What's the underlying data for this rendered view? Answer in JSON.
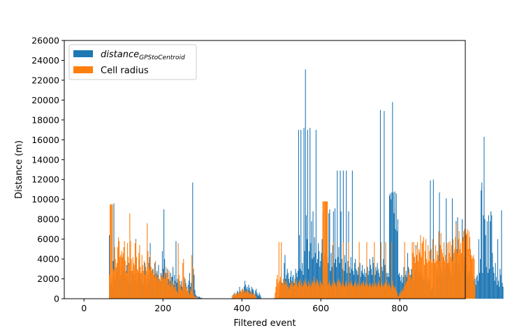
{
  "chart_data": {
    "type": "bar",
    "xlabel": "Filtered event",
    "ylabel": "Distance (m)",
    "xlim": [
      -50,
      966
    ],
    "ylim": [
      0,
      26000
    ],
    "x_ticks": [
      0,
      200,
      400,
      600,
      800
    ],
    "y_ticks": [
      0,
      2000,
      4000,
      6000,
      8000,
      10000,
      12000,
      14000,
      16000,
      18000,
      20000,
      22000,
      24000,
      26000
    ],
    "legend_position": "top-left",
    "grid": false,
    "series": [
      {
        "name": "distance",
        "name_subscript": "GPStoCentroid",
        "color": "#1f77b4",
        "values": [
          0,
          0,
          0,
          0,
          0,
          0,
          0,
          0,
          0,
          0,
          0,
          0,
          0,
          0,
          0,
          0,
          0,
          0,
          0,
          0,
          0,
          0,
          0,
          0,
          0,
          0,
          0,
          0,
          0,
          0,
          0,
          0,
          0,
          6400,
          1600,
          1400,
          2000,
          1200,
          3800,
          9600,
          2400,
          1800,
          3000,
          2600,
          3200,
          2400,
          4000,
          1800,
          2400,
          3000,
          2600,
          4200,
          2800,
          4000,
          2600,
          2000,
          3400,
          2200,
          1600,
          3600,
          2800,
          1400,
          2200,
          1800,
          3200,
          2600,
          2400,
          1800,
          6000,
          2000,
          1600,
          2600,
          4000,
          2400,
          1800,
          2000,
          1600,
          2800,
          1400,
          2200,
          3600,
          1800,
          1400,
          2000,
          2400,
          1600,
          4200,
          5600,
          3200,
          2600,
          3000,
          2800,
          1800,
          3600,
          2600,
          2200,
          2800,
          2400,
          3400,
          2000,
          1800,
          2600,
          2400,
          4800,
          3000,
          9000,
          4000,
          2600,
          2200,
          1600,
          3000,
          2000,
          2400,
          1800,
          2600,
          1600,
          2200,
          3200,
          1400,
          2400,
          1800,
          5800,
          1600,
          2000,
          1200,
          1600,
          1400,
          1000,
          1800,
          1200,
          1600,
          900,
          1400,
          2000,
          1600,
          1200,
          800,
          1400,
          1800,
          2600,
          1200,
          1600,
          600,
          11700,
          3000,
          2400,
          900,
          400,
          300,
          200,
          200,
          200,
          200,
          100,
          100,
          100,
          0,
          0,
          0,
          0,
          0,
          0,
          0,
          0,
          0,
          0,
          0,
          0,
          0,
          0,
          0,
          0,
          0,
          0,
          0,
          0,
          0,
          0,
          0,
          0,
          0,
          0,
          0,
          0,
          0,
          0,
          0,
          0,
          0,
          0,
          0,
          0,
          0,
          0,
          0,
          0,
          200,
          400,
          600,
          300,
          500,
          400,
          800,
          600,
          400,
          1200,
          800,
          600,
          900,
          1000,
          700,
          1200,
          1800,
          1400,
          1000,
          1200,
          800,
          1400,
          1100,
          800,
          600,
          1200,
          1000,
          900,
          600,
          400,
          800,
          1000,
          600,
          400,
          300,
          600,
          400,
          200,
          0,
          0,
          0,
          0,
          0,
          0,
          0,
          0,
          0,
          0,
          0,
          0,
          0,
          0,
          0,
          0,
          0,
          0,
          0,
          0,
          0,
          0,
          0,
          200,
          1200,
          2000,
          2800,
          1600,
          1400,
          2000,
          3600,
          4400,
          2000,
          2400,
          3000,
          2600,
          2000,
          1600,
          2200,
          2800,
          1800,
          2200,
          2400,
          1600,
          2000,
          3000,
          2600,
          2200,
          2800,
          17000,
          6400,
          3000,
          17000,
          2800,
          3600,
          2400,
          17200,
          4800,
          23100,
          8400,
          6000,
          17000,
          3000,
          4800,
          17200,
          5600,
          7800,
          4000,
          8800,
          4200,
          6200,
          4600,
          17000,
          3600,
          4000,
          5600,
          4800,
          3200,
          3800,
          4600,
          6000,
          8800,
          4000,
          3200,
          4400,
          5600,
          3000,
          4200,
          3600,
          8600,
          9000,
          2800,
          4600,
          3200,
          5400,
          8800,
          3600,
          9100,
          4000,
          3200,
          12900,
          4200,
          5200,
          3600,
          12900,
          8800,
          4000,
          3000,
          12900,
          2800,
          4400,
          3600,
          12900,
          2600,
          3800,
          8800,
          3200,
          2600,
          4200,
          3000,
          12900,
          2800,
          2400,
          3600,
          4000,
          3000,
          2800,
          2400,
          3200,
          2600,
          3600,
          2200,
          2800,
          3400,
          2600,
          2400,
          3000,
          2200,
          2600,
          2000,
          3200,
          2400,
          2800,
          4000,
          3400,
          3000,
          2400,
          4200,
          3600,
          3000,
          2400,
          3200,
          2800,
          3600,
          3000,
          2600,
          2200,
          19000,
          3800,
          3200,
          2800,
          4000,
          18900,
          3400,
          3000,
          2600,
          2200,
          2600,
          2200,
          10400,
          10600,
          10000,
          10700,
          19800,
          10700,
          8600,
          10800,
          7000,
          10600,
          6800,
          8000,
          2400,
          2600,
          2200,
          1800,
          2400,
          1600,
          2200,
          3200,
          2000,
          2400,
          2800,
          2200,
          4600,
          3200,
          2600,
          2000,
          2400,
          3000,
          2600,
          2200,
          1800,
          4200,
          2800,
          5400,
          3600,
          3000,
          2400,
          4800,
          2600,
          2200,
          3600,
          2800,
          2400,
          2000,
          1800,
          3400,
          2400,
          2000,
          1600,
          2200,
          1800,
          1400,
          11900,
          800,
          1000,
          1200,
          12000,
          1200,
          600,
          400,
          3000,
          2400,
          4000,
          2200,
          10700,
          4400,
          3200,
          2800,
          2200,
          3600,
          5000,
          2400,
          3200,
          10100,
          4000,
          3400,
          2600,
          3800,
          3200,
          2600,
          2200,
          10100,
          3000,
          2400,
          3600,
          4800,
          7800,
          3200,
          8200,
          2800,
          3600,
          4400,
          2600,
          3800,
          8000,
          6200,
          4200,
          2800,
          3400,
          5200,
          3000,
          2200,
          2600,
          2800,
          2400,
          3200,
          2000,
          2600,
          2200,
          1800,
          1600,
          2000,
          1400,
          2200,
          2400,
          1800,
          6000,
          2600,
          4000,
          10900,
          11700,
          2600,
          8400,
          16300,
          8000,
          6400,
          3200,
          7800,
          2600,
          8400,
          3000,
          7800,
          8800,
          8400,
          4600,
          3200,
          2600,
          1800,
          3600,
          2200,
          1400,
          6000,
          1800,
          1200,
          3000,
          2400,
          8900,
          1600,
          1200
        ],
        "values_note": "indices 0..476 map to events 0..913 in steps of ~1.92"
      },
      {
        "name": "Cell radius",
        "color": "#ff7f0e",
        "values": [
          0,
          0,
          0,
          0,
          0,
          0,
          0,
          0,
          0,
          0,
          0,
          0,
          0,
          0,
          0,
          0,
          0,
          0,
          0,
          0,
          0,
          0,
          0,
          0,
          0,
          0,
          0,
          0,
          0,
          0,
          0,
          0,
          0,
          2400,
          9500,
          9500,
          9500,
          9500,
          3000,
          2800,
          5200,
          4000,
          3200,
          3600,
          5200,
          6200,
          5800,
          4200,
          4400,
          4800,
          4200,
          4600,
          5200,
          5800,
          3800,
          2800,
          2600,
          5600,
          4200,
          3400,
          8600,
          5800,
          4000,
          2800,
          4200,
          3600,
          3400,
          5600,
          5800,
          4200,
          3000,
          2800,
          4600,
          5400,
          3200,
          2600,
          4400,
          3400,
          2800,
          3800,
          2400,
          3200,
          2800,
          7600,
          4800,
          3600,
          3000,
          4400,
          3200,
          2800,
          2600,
          3000,
          2400,
          2200,
          3800,
          2600,
          2000,
          2200,
          2400,
          1800,
          1800,
          2200,
          2400,
          2800,
          2000,
          2200,
          2600,
          2000,
          3200,
          2600,
          2200,
          1400,
          2800,
          1600,
          1200,
          2200,
          1800,
          1400,
          1200,
          1000,
          1600,
          1200,
          800,
          600,
          5600,
          2400,
          1800,
          1400,
          1000,
          800,
          3600,
          4000,
          2200,
          1600,
          1200,
          1000,
          800,
          1200,
          600,
          400,
          1000,
          800,
          4400,
          3200,
          600,
          300,
          200,
          200,
          200,
          100,
          100,
          0,
          0,
          0,
          0,
          0,
          0,
          0,
          0,
          0,
          0,
          0,
          0,
          0,
          0,
          0,
          0,
          0,
          0,
          0,
          0,
          0,
          0,
          0,
          0,
          0,
          0,
          0,
          0,
          0,
          0,
          0,
          0,
          0,
          0,
          0,
          0,
          0,
          0,
          0,
          0,
          0,
          0,
          0,
          0,
          200,
          400,
          300,
          500,
          400,
          600,
          500,
          400,
          700,
          600,
          500,
          800,
          700,
          900,
          1000,
          800,
          600,
          900,
          700,
          600,
          800,
          900,
          700,
          500,
          600,
          700,
          500,
          400,
          600,
          500,
          400,
          300,
          200,
          0,
          0,
          0,
          0,
          0,
          0,
          0,
          0,
          0,
          0,
          0,
          0,
          0,
          0,
          0,
          0,
          0,
          0,
          0,
          0,
          0,
          0,
          0,
          100,
          600,
          1200,
          2000,
          2400,
          1600,
          5700,
          1800,
          2200,
          5700,
          1400,
          1600,
          1800,
          2000,
          1400,
          1800,
          1600,
          1200,
          1400,
          1000,
          1200,
          1600,
          1400,
          1800,
          1600,
          1200,
          1400,
          2000,
          1600,
          1800,
          1400,
          1200,
          1600,
          1800,
          2000,
          1400,
          1600,
          1200,
          1400,
          1800,
          1600,
          2000,
          1400,
          1600,
          1200,
          1800,
          1400,
          1600,
          1200,
          1400,
          1800,
          1600,
          2200,
          1800,
          1400,
          1600,
          2000,
          1800,
          1400,
          1600,
          1200,
          1800,
          1600,
          1400,
          9800,
          9800,
          9800,
          9800,
          9800,
          9800,
          9800,
          1400,
          1600,
          1800,
          1400,
          1200,
          1600,
          1400,
          5700,
          1800,
          1600,
          1400,
          1200,
          1800,
          1600,
          2000,
          1800,
          1600,
          1400,
          1200,
          1600,
          5700,
          1400,
          1200,
          1600,
          1800,
          1400,
          1200,
          5700,
          1600,
          1400,
          1800,
          1600,
          1400,
          1200,
          1400,
          1600,
          1800,
          1400,
          1200,
          1600,
          1400,
          5700,
          1200,
          1400,
          1600,
          1400,
          1800,
          1600,
          1200,
          1400,
          1600,
          5700,
          1400,
          1200,
          1400,
          1600,
          1400,
          1200,
          1600,
          1400,
          1200,
          5700,
          1400,
          1600,
          1200,
          1400,
          1600,
          1800,
          1400,
          1200,
          5700,
          1600,
          1400,
          1200,
          1400,
          1600,
          5700,
          1800,
          1400,
          1200,
          1600,
          1400,
          1200,
          1000,
          5700,
          1800,
          1400,
          1200,
          1000,
          1200,
          800,
          600,
          300,
          200,
          600,
          400,
          800,
          600,
          1000,
          800,
          1200,
          5700,
          1400,
          1600,
          1800,
          2200,
          2600,
          3000,
          2400,
          2200,
          2000,
          5700,
          4600,
          5700,
          4200,
          3600,
          5000,
          4400,
          5700,
          3800,
          5000,
          4600,
          6400,
          4200,
          5600,
          5800,
          6200,
          3400,
          4800,
          6000,
          4000,
          3600,
          5400,
          3800,
          4800,
          4000,
          5000,
          3600,
          6000,
          3800,
          4000,
          3600,
          5400,
          3800,
          4800,
          4400,
          6800,
          3800,
          5400,
          6600,
          5000,
          4600,
          4200,
          5700,
          3800,
          4400,
          3800,
          5600,
          3600,
          5700,
          4600,
          5800,
          4200,
          5400,
          3800,
          6000,
          4600,
          5000,
          6200,
          7600,
          5000,
          4600,
          6000,
          6800,
          5000,
          5600,
          4600,
          6200,
          5800,
          6800,
          7000,
          6800,
          6400,
          6600,
          7000,
          5000,
          6800,
          6200,
          5000,
          4400,
          4000,
          4200,
          4400,
          4000,
          1400
        ]
      }
    ]
  }
}
